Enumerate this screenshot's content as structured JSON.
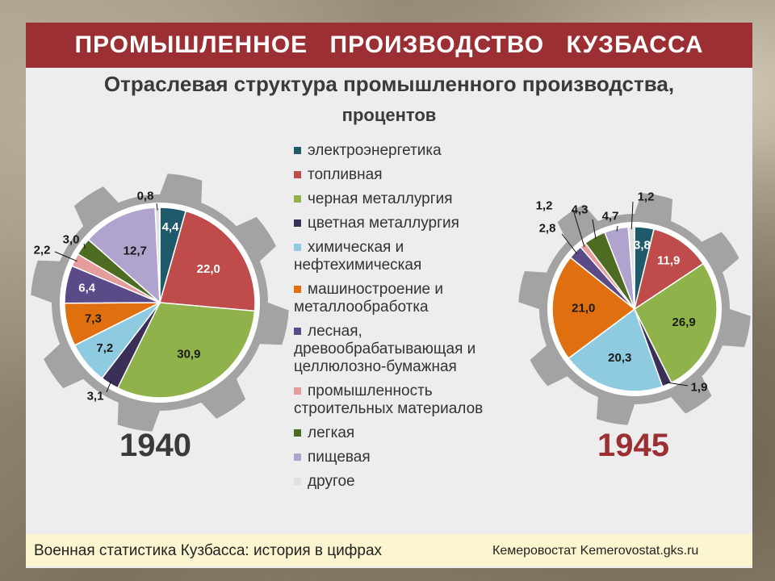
{
  "header": {
    "title": "ПРОМЫШЛЕННОЕ ПРОИЗВОДСТВО КУЗБАССА",
    "subtitle": "Отраслевая структура промышленного производства,",
    "subtitle_unit": "процентов"
  },
  "footer": {
    "left": "Военная статистика Кузбасса: история в цифрах",
    "right": "Кемеровостат Kemerovostat.gks.ru"
  },
  "colors": {
    "banner": "#9b2f33",
    "gear": "#a3a3a3",
    "year_1940": "#3a3a3a",
    "year_1945": "#9b2f33"
  },
  "chart_data": [
    {
      "type": "pie",
      "title": "1940",
      "legend": [
        {
          "label": "электроэнергетика",
          "color": "#1f5a6b"
        },
        {
          "label": "топливная",
          "color": "#bf4b4b"
        },
        {
          "label": "черная металлургия",
          "color": "#8fb34a"
        },
        {
          "label": "цветная металлургия",
          "color": "#3a2f57"
        },
        {
          "label": "химическая и нефтехимическая",
          "color": "#8fcbe0"
        },
        {
          "label": "машиностроение и металлообработка",
          "color": "#e0700f"
        },
        {
          "label": "лесная, древообрабатывающая и целлюлозно-бумажная",
          "color": "#5b4a88"
        },
        {
          "label": "промышленность строительных материалов",
          "color": "#e59c9c"
        },
        {
          "label": "легкая",
          "color": "#4e6b22"
        },
        {
          "label": "пищевая",
          "color": "#b0a3cd"
        },
        {
          "label": "другое",
          "color": "#e0e0e0"
        }
      ],
      "slices": [
        {
          "label": "электроэнергетика",
          "value": 4.4,
          "text": "4,4"
        },
        {
          "label": "топливная",
          "value": 22.0,
          "text": "22,0"
        },
        {
          "label": "черная металлургия",
          "value": 30.9,
          "text": "30,9"
        },
        {
          "label": "цветная металлургия",
          "value": 3.1,
          "text": "3,1"
        },
        {
          "label": "химическая и нефтехимическая",
          "value": 7.2,
          "text": "7,2"
        },
        {
          "label": "машиностроение и металлообработка",
          "value": 7.3,
          "text": "7,3"
        },
        {
          "label": "лесная, древообрабатывающая и целлюлозно-бумажная",
          "value": 6.4,
          "text": "6,4"
        },
        {
          "label": "промышленность строительных материалов",
          "value": 2.2,
          "text": "2,2"
        },
        {
          "label": "легкая",
          "value": 3.0,
          "text": "3,0"
        },
        {
          "label": "пищевая",
          "value": 12.7,
          "text": "12,7"
        },
        {
          "label": "другое",
          "value": 0.8,
          "text": "0,8"
        }
      ]
    },
    {
      "type": "pie",
      "title": "1945",
      "slices": [
        {
          "label": "электроэнергетика",
          "value": 3.8,
          "text": "3,8"
        },
        {
          "label": "топливная",
          "value": 11.9,
          "text": "11,9"
        },
        {
          "label": "черная металлургия",
          "value": 26.9,
          "text": "26,9"
        },
        {
          "label": "цветная металлургия",
          "value": 1.9,
          "text": "1,9"
        },
        {
          "label": "химическая и нефтехимическая",
          "value": 20.3,
          "text": "20,3"
        },
        {
          "label": "машиностроение и металлообработка",
          "value": 21.0,
          "text": "21,0"
        },
        {
          "label": "лесная, древообрабатывающая и целлюлозно-бумажная",
          "value": 2.8,
          "text": "2,8"
        },
        {
          "label": "промышленность строительных материалов",
          "value": 1.2,
          "text": "1,2"
        },
        {
          "label": "легкая",
          "value": 4.3,
          "text": "4,3"
        },
        {
          "label": "пищевая",
          "value": 4.7,
          "text": "4,7"
        },
        {
          "label": "другое",
          "value": 1.2,
          "text": "1,2"
        }
      ]
    }
  ]
}
